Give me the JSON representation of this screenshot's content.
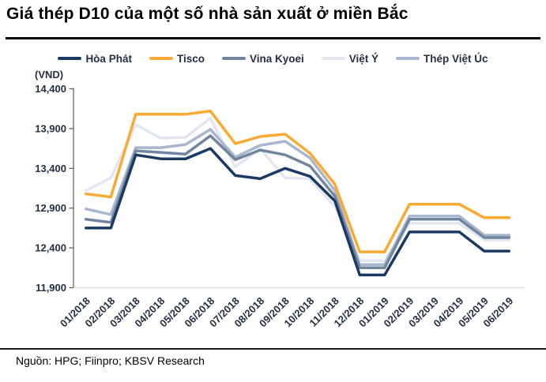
{
  "title": "Giá thép D10 của một số nhà sản xuất ở miền Bắc",
  "y_axis_unit": "(VND)",
  "source": "Nguồn: HPG; Fiinpro; KBSV Research",
  "chart_data": {
    "type": "line",
    "categories": [
      "01/2018",
      "02/2018",
      "03/2018",
      "04/2018",
      "05/2018",
      "06/2018",
      "07/2018",
      "08/2018",
      "09/2018",
      "10/2018",
      "11/2018",
      "12/2018",
      "01/2019",
      "02/2019",
      "03/2019",
      "04/2019",
      "05/2019",
      "06/2019"
    ],
    "series": [
      {
        "name": "Hòa Phát",
        "color": "#1B3A63",
        "values": [
          12650,
          12650,
          13570,
          13520,
          13520,
          13650,
          13310,
          13270,
          13400,
          13300,
          12990,
          12060,
          12060,
          12600,
          12600,
          12600,
          12360,
          12360
        ]
      },
      {
        "name": "Tisco",
        "color": "#FAAA32",
        "values": [
          13080,
          13040,
          14080,
          14080,
          14080,
          14120,
          13710,
          13800,
          13830,
          13590,
          13200,
          12350,
          12350,
          12950,
          12950,
          12950,
          12780,
          12780
        ]
      },
      {
        "name": "Vina Kyoei",
        "color": "#71859E",
        "values": [
          12760,
          12720,
          13620,
          13600,
          13580,
          13810,
          13510,
          13630,
          13570,
          13430,
          13050,
          12150,
          12150,
          12760,
          12760,
          12760,
          12530,
          12530
        ]
      },
      {
        "name": "Việt Ý",
        "color": "#E1E6EF",
        "values": [
          13120,
          13280,
          13950,
          13780,
          13790,
          14030,
          13420,
          13650,
          13280,
          13270,
          12920,
          12240,
          12240,
          12710,
          12710,
          12710,
          12500,
          12500
        ]
      },
      {
        "name": "Thép Việt Úc",
        "color": "#A8B7CD",
        "values": [
          12890,
          12820,
          13660,
          13660,
          13700,
          13890,
          13540,
          13690,
          13740,
          13530,
          13120,
          12190,
          12190,
          12800,
          12800,
          12800,
          12560,
          12560
        ]
      }
    ],
    "ylim": [
      11900,
      14400
    ],
    "ytick_step": 500,
    "grid": false,
    "legend_position": "top",
    "draw_order": [
      3,
      4,
      2,
      1,
      0
    ],
    "axis_color": "#595959",
    "baseline_color": "#D9D9D9"
  }
}
